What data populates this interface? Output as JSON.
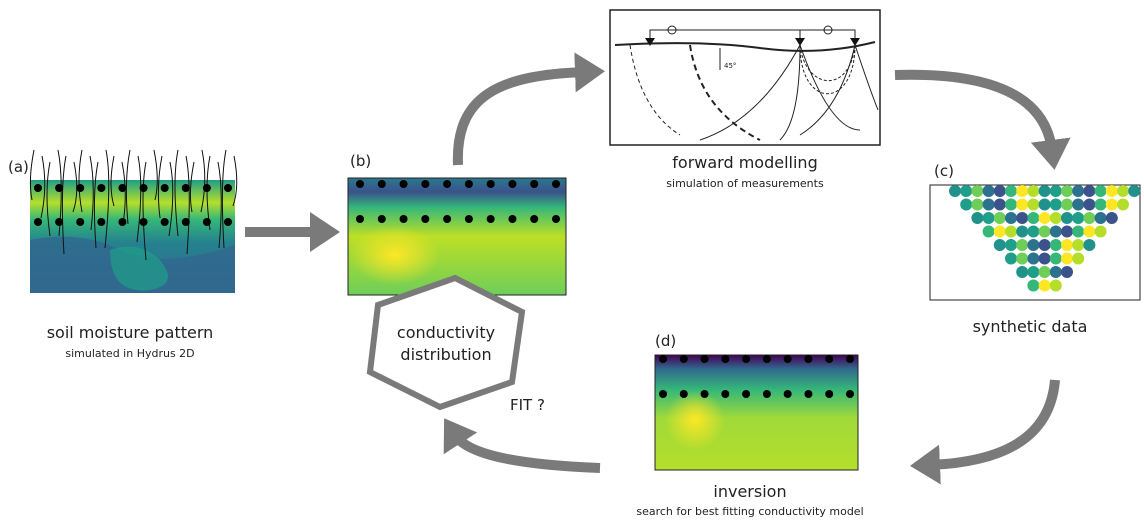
{
  "panel_a": {
    "label": "(a)",
    "title": "soil moisture pattern",
    "subtitle": "simulated in Hydrus 2D"
  },
  "panel_b": {
    "label": "(b)"
  },
  "hexagon": {
    "lines": [
      "conductivity",
      "distribution"
    ],
    "fit": "FIT ?"
  },
  "forward": {
    "title": "forward modelling",
    "subtitle": "simulation of measurements",
    "angle": "45°"
  },
  "panel_c": {
    "label": "(c)",
    "title": "synthetic data"
  },
  "panel_d": {
    "label": "(d)",
    "title": "inversion",
    "subtitle": "search for best fitting conductivity model"
  }
}
